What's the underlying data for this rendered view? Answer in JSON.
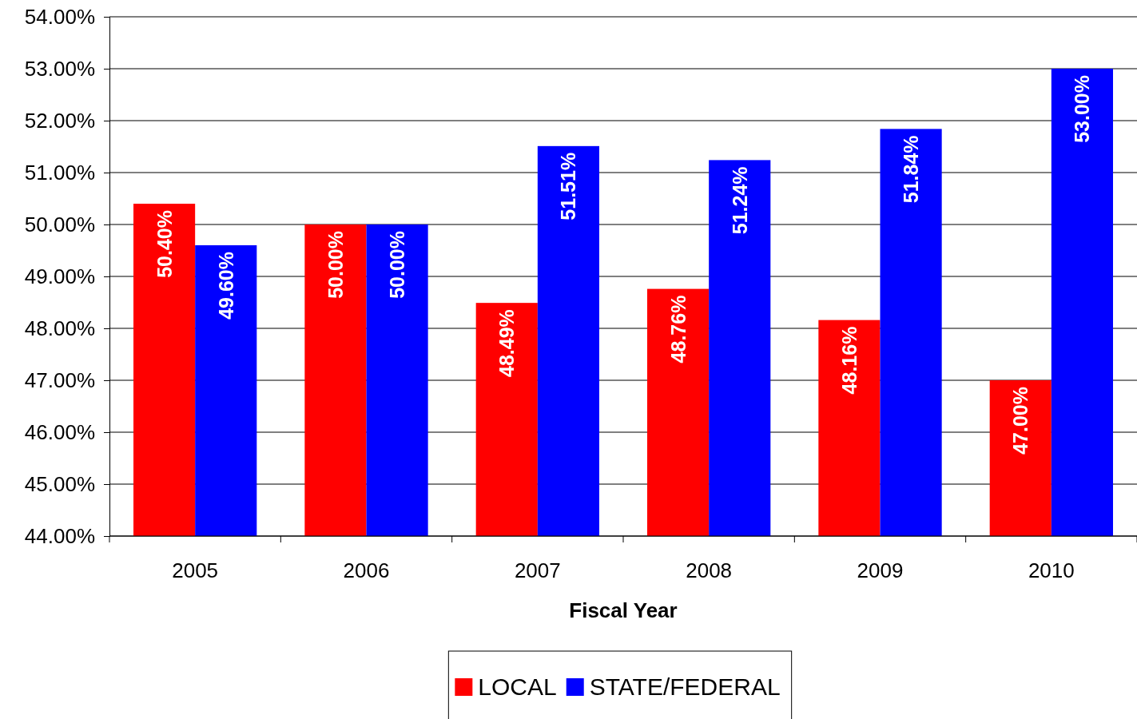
{
  "chart_data": {
    "type": "bar",
    "xlabel": "Fiscal Year",
    "categories": [
      "2005",
      "2006",
      "2007",
      "2008",
      "2009",
      "2010"
    ],
    "series": [
      {
        "name": "LOCAL",
        "color": "#ff0000",
        "values": [
          50.4,
          50,
          48.49,
          48.76,
          48.16,
          47
        ],
        "value_labels": [
          "50.40%",
          "50.00%",
          "48.49%",
          "48.76%",
          "48.16%",
          "47.00%"
        ]
      },
      {
        "name": "STATE/FEDERAL",
        "color": "#0000ff",
        "values": [
          49.6,
          50,
          51.51,
          51.24,
          51.84,
          53
        ],
        "value_labels": [
          "49.60%",
          "50.00%",
          "51.51%",
          "51.24%",
          "51.84%",
          "53.00%"
        ]
      }
    ],
    "ylim": [
      44,
      54
    ],
    "yticks": [
      {
        "value": 44,
        "label": "44.00%"
      },
      {
        "value": 45,
        "label": "45.00%"
      },
      {
        "value": 46,
        "label": "46.00%"
      },
      {
        "value": 47,
        "label": "47.00%"
      },
      {
        "value": 48,
        "label": "48.00%"
      },
      {
        "value": 49,
        "label": "49.00%"
      },
      {
        "value": 50,
        "label": "50.00%"
      },
      {
        "value": 51,
        "label": "51.00%"
      },
      {
        "value": 52,
        "label": "52.00%"
      },
      {
        "value": 53,
        "label": "53.00%"
      },
      {
        "value": 54,
        "label": "54.00%"
      }
    ],
    "grid": "y",
    "legend": "bottom"
  }
}
